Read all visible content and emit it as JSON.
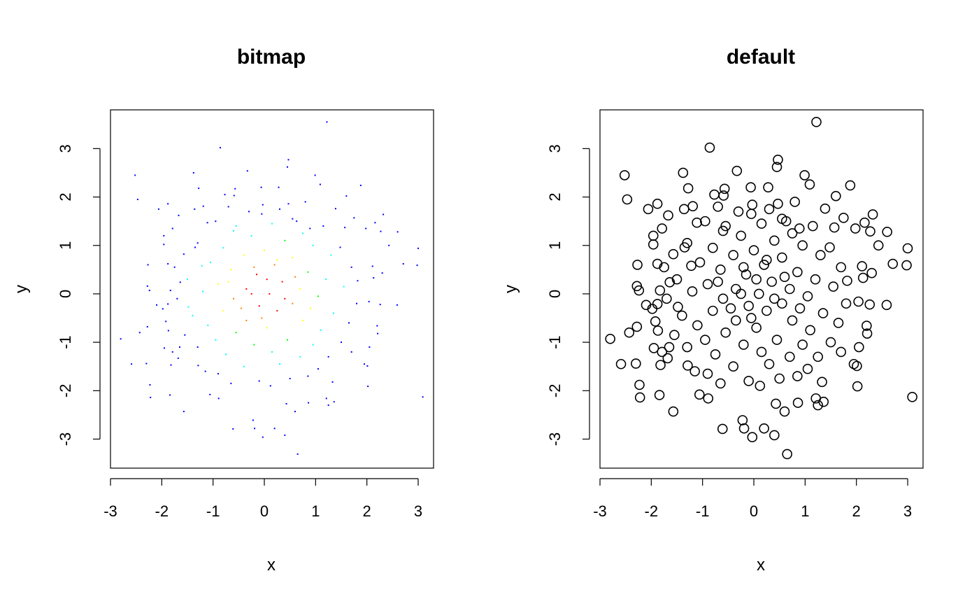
{
  "chart_data": [
    {
      "type": "scatter",
      "title": "bitmap",
      "xlabel": "x",
      "ylabel": "y",
      "xlim": [
        -3.0,
        3.3
      ],
      "ylim": [
        -3.6,
        3.8
      ],
      "xticks": [
        -3,
        -2,
        -1,
        0,
        1,
        2,
        3
      ],
      "yticks": [
        -3,
        -2,
        -1,
        0,
        1,
        2,
        3
      ],
      "xtick_labels": [
        "-3",
        "-2",
        "-1",
        "0",
        "1",
        "2",
        "3"
      ],
      "ytick_labels": [
        "-3",
        "-2",
        "-1",
        "0",
        "1",
        "2",
        "3"
      ],
      "point_style": "tiny dots colored by local density",
      "density_colors": [
        "#0000ff",
        "#00ffff",
        "#00ff00",
        "#ffff00",
        "#ff8000",
        "#ff0000"
      ],
      "grid": false,
      "legend": "none"
    },
    {
      "type": "scatter",
      "title": "default",
      "xlabel": "x",
      "ylabel": "y",
      "xlim": [
        -3.0,
        3.3
      ],
      "ylim": [
        -3.6,
        3.8
      ],
      "xticks": [
        -3,
        -2,
        -1,
        0,
        1,
        2,
        3
      ],
      "yticks": [
        -3,
        -2,
        -1,
        0,
        1,
        2,
        3
      ],
      "xtick_labels": [
        "-3",
        "-2",
        "-1",
        "0",
        "1",
        "2",
        "3"
      ],
      "ytick_labels": [
        "-3",
        "-2",
        "-1",
        "0",
        "1",
        "2",
        "3"
      ],
      "point_style": "open circles",
      "point_color": "#000000",
      "grid": false,
      "legend": "none"
    }
  ],
  "points": [
    [
      1.22,
      3.55
    ],
    [
      -0.86,
      3.02
    ],
    [
      0.47,
      2.77
    ],
    [
      0.45,
      2.62
    ],
    [
      -0.33,
      2.54
    ],
    [
      -2.52,
      2.45
    ],
    [
      -1.38,
      2.5
    ],
    [
      0.99,
      2.45
    ],
    [
      1.88,
      2.24
    ],
    [
      -0.06,
      2.2
    ],
    [
      -0.57,
      2.17
    ],
    [
      -1.28,
      2.18
    ],
    [
      0.28,
      2.2
    ],
    [
      1.09,
      2.26
    ],
    [
      -2.47,
      1.95
    ],
    [
      -2.06,
      1.75
    ],
    [
      -1.88,
      1.86
    ],
    [
      -1.36,
      1.75
    ],
    [
      -1.19,
      1.81
    ],
    [
      -0.59,
      2.03
    ],
    [
      -0.77,
      2.05
    ],
    [
      1.6,
      2.02
    ],
    [
      1.39,
      1.76
    ],
    [
      2.32,
      1.64
    ],
    [
      -1.67,
      1.62
    ],
    [
      -1.11,
      1.47
    ],
    [
      0.47,
      1.86
    ],
    [
      -0.03,
      1.84
    ],
    [
      0.63,
      1.5
    ],
    [
      1.75,
      1.57
    ],
    [
      2.16,
      1.47
    ],
    [
      1.57,
      1.37
    ],
    [
      -1.96,
      1.2
    ],
    [
      -1.79,
      1.35
    ],
    [
      -0.55,
      1.4
    ],
    [
      0.89,
      1.35
    ],
    [
      1.98,
      1.35
    ],
    [
      -1.96,
      1.02
    ],
    [
      -1.35,
      0.96
    ],
    [
      2.43,
      1.0
    ],
    [
      2.6,
      1.28
    ],
    [
      2.27,
      1.29
    ],
    [
      1.48,
      0.96
    ],
    [
      3.0,
      0.94
    ],
    [
      -2.27,
      0.6
    ],
    [
      -1.88,
      0.62
    ],
    [
      -1.57,
      0.82
    ],
    [
      -1.75,
      0.55
    ],
    [
      -1.22,
      0.58
    ],
    [
      2.11,
      0.57
    ],
    [
      2.3,
      0.43
    ],
    [
      2.71,
      0.62
    ],
    [
      2.98,
      0.59
    ],
    [
      -2.28,
      0.16
    ],
    [
      -2.24,
      0.07
    ],
    [
      -1.83,
      0.07
    ],
    [
      -1.64,
      0.24
    ],
    [
      1.82,
      0.27
    ],
    [
      2.13,
      0.33
    ],
    [
      -2.1,
      -0.23
    ],
    [
      -1.98,
      -0.31
    ],
    [
      -1.88,
      -0.21
    ],
    [
      -1.48,
      -0.27
    ],
    [
      2.04,
      -0.16
    ],
    [
      2.26,
      -0.22
    ],
    [
      2.59,
      -0.23
    ],
    [
      -2.28,
      -0.68
    ],
    [
      -2.43,
      -0.8
    ],
    [
      -1.92,
      -0.57
    ],
    [
      -2.8,
      -0.93
    ],
    [
      -1.87,
      -0.76
    ],
    [
      2.2,
      -0.66
    ],
    [
      2.21,
      -0.82
    ],
    [
      -1.95,
      -1.12
    ],
    [
      -1.79,
      -1.2
    ],
    [
      -1.65,
      -1.1
    ],
    [
      -1.68,
      -1.33
    ],
    [
      1.7,
      -1.2
    ],
    [
      2.05,
      -1.1
    ],
    [
      -2.59,
      -1.45
    ],
    [
      -2.3,
      -1.44
    ],
    [
      -1.82,
      -1.47
    ],
    [
      -1.29,
      -1.48
    ],
    [
      1.95,
      -1.45
    ],
    [
      2.01,
      -1.49
    ],
    [
      -2.23,
      -1.88
    ],
    [
      -1.84,
      -2.09
    ],
    [
      1.33,
      -1.82
    ],
    [
      2.02,
      -1.91
    ],
    [
      -2.22,
      -2.14
    ],
    [
      -1.06,
      -2.08
    ],
    [
      -0.89,
      -2.16
    ],
    [
      3.09,
      -2.13
    ],
    [
      1.21,
      -2.16
    ],
    [
      1.36,
      -2.23
    ],
    [
      -1.57,
      -2.43
    ],
    [
      0.43,
      -2.27
    ],
    [
      0.86,
      -2.25
    ],
    [
      -0.22,
      -2.61
    ],
    [
      -0.61,
      -2.79
    ],
    [
      0.2,
      -2.78
    ],
    [
      0.6,
      -2.43
    ],
    [
      -0.19,
      -2.78
    ],
    [
      -0.03,
      -2.96
    ],
    [
      0.4,
      -2.92
    ],
    [
      0.65,
      -3.31
    ],
    [
      1.25,
      -2.3
    ],
    [
      0.12,
      -1.9
    ],
    [
      -0.1,
      -1.8
    ],
    [
      0.5,
      -1.75
    ],
    [
      -0.65,
      -1.85
    ],
    [
      -0.9,
      -1.65
    ],
    [
      0.85,
      -1.7
    ],
    [
      1.05,
      -1.55
    ],
    [
      -1.15,
      -1.6
    ],
    [
      0.3,
      -1.45
    ],
    [
      -0.4,
      -1.5
    ],
    [
      0.7,
      -1.3
    ],
    [
      -0.75,
      -1.25
    ],
    [
      1.25,
      -1.3
    ],
    [
      -1.3,
      -1.1
    ],
    [
      0.15,
      -1.2
    ],
    [
      -0.2,
      -1.05
    ],
    [
      0.95,
      -1.05
    ],
    [
      -0.95,
      -0.95
    ],
    [
      1.5,
      -1.0
    ],
    [
      -1.55,
      -0.85
    ],
    [
      0.45,
      -0.95
    ],
    [
      -0.55,
      -0.8
    ],
    [
      1.1,
      -0.75
    ],
    [
      -1.1,
      -0.65
    ],
    [
      0.05,
      -0.7
    ],
    [
      1.65,
      -0.6
    ],
    [
      -0.35,
      -0.55
    ],
    [
      0.75,
      -0.55
    ],
    [
      -1.4,
      -0.45
    ],
    [
      1.35,
      -0.4
    ],
    [
      -0.8,
      -0.35
    ],
    [
      0.25,
      -0.35
    ],
    [
      -0.1,
      -0.25
    ],
    [
      0.55,
      -0.2
    ],
    [
      1.8,
      -0.2
    ],
    [
      -1.7,
      -0.1
    ],
    [
      -0.6,
      -0.1
    ],
    [
      1.05,
      -0.05
    ],
    [
      -1.2,
      0.05
    ],
    [
      0.1,
      0.0
    ],
    [
      -0.35,
      0.1
    ],
    [
      0.7,
      0.1
    ],
    [
      1.55,
      0.15
    ],
    [
      -0.9,
      0.2
    ],
    [
      0.35,
      0.25
    ],
    [
      -1.5,
      0.3
    ],
    [
      1.2,
      0.3
    ],
    [
      -0.15,
      0.4
    ],
    [
      0.85,
      0.45
    ],
    [
      -0.65,
      0.5
    ],
    [
      1.7,
      0.55
    ],
    [
      0.2,
      0.6
    ],
    [
      -1.05,
      0.65
    ],
    [
      0.55,
      0.75
    ],
    [
      -0.4,
      0.8
    ],
    [
      1.3,
      0.8
    ],
    [
      0.0,
      0.9
    ],
    [
      -0.8,
      0.95
    ],
    [
      0.95,
      1.0
    ],
    [
      -1.3,
      1.05
    ],
    [
      0.4,
      1.1
    ],
    [
      -0.25,
      1.2
    ],
    [
      0.75,
      1.25
    ],
    [
      -0.6,
      1.3
    ],
    [
      1.15,
      1.4
    ],
    [
      0.15,
      1.45
    ],
    [
      -0.95,
      1.5
    ],
    [
      0.55,
      1.55
    ],
    [
      -0.05,
      1.65
    ],
    [
      -0.3,
      1.7
    ],
    [
      0.3,
      1.75
    ],
    [
      -0.7,
      1.8
    ],
    [
      0.8,
      1.9
    ],
    [
      0.05,
      0.3
    ],
    [
      -0.2,
      0.55
    ],
    [
      0.4,
      -0.1
    ],
    [
      -0.45,
      -0.3
    ],
    [
      0.6,
      0.35
    ],
    [
      -0.05,
      -0.5
    ],
    [
      0.25,
      0.7
    ],
    [
      -0.7,
      0.25
    ],
    [
      0.9,
      -0.3
    ],
    [
      -0.25,
      0.0
    ]
  ]
}
